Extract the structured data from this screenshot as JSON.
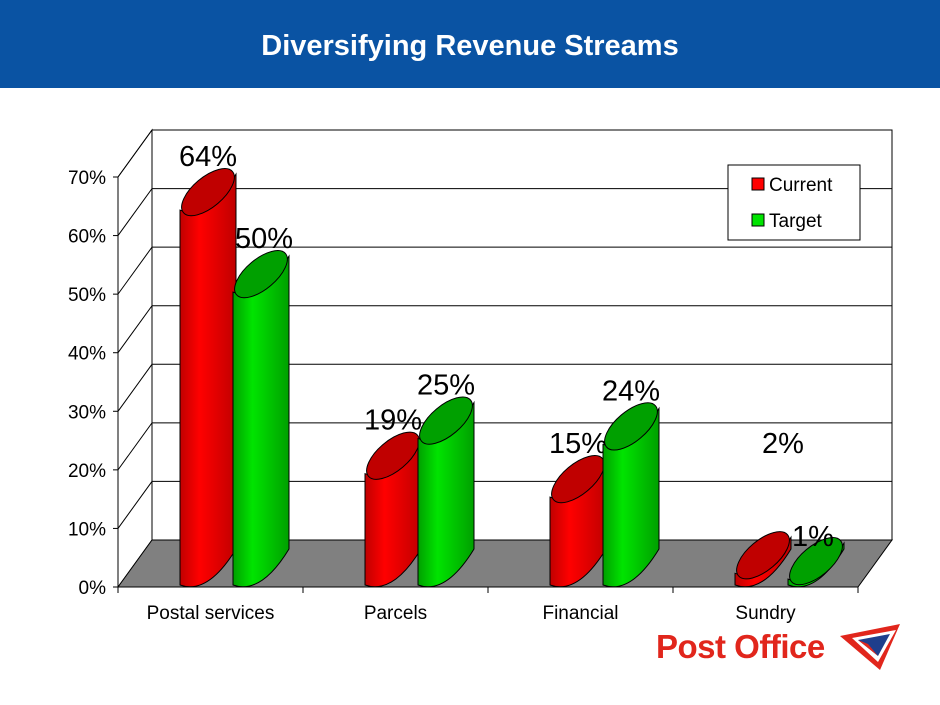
{
  "header": {
    "title": "Diversifying Revenue Streams"
  },
  "colors": {
    "header": "#0a53a3",
    "current": "#ff0000",
    "target": "#00e400",
    "floor": "#808080",
    "brand": "#e1261c"
  },
  "chart_data": {
    "type": "bar",
    "title": "",
    "xlabel": "",
    "ylabel": "",
    "ylim": [
      0,
      0.7
    ],
    "yticks": [
      "0%",
      "10%",
      "20%",
      "30%",
      "40%",
      "50%",
      "60%",
      "70%"
    ],
    "categories": [
      "Postal services",
      "Parcels",
      "Financial",
      "Sundry"
    ],
    "series": [
      {
        "name": "Current",
        "values": [
          0.64,
          0.19,
          0.15,
          0.02
        ],
        "labels": [
          "64%",
          "19%",
          "15%",
          "2%"
        ]
      },
      {
        "name": "Target",
        "values": [
          0.5,
          0.25,
          0.24,
          0.01
        ],
        "labels": [
          "50%",
          "25%",
          "24%",
          "1%"
        ]
      }
    ],
    "grid": true,
    "legend": "top-right"
  },
  "logo": {
    "text": "Post Office",
    "mark": "post-office-envelope-icon"
  }
}
